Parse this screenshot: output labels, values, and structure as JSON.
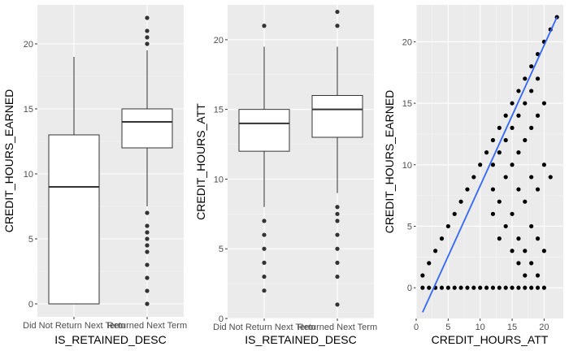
{
  "chart_data": [
    {
      "type": "box",
      "xlabel": "IS_RETAINED_DESC",
      "ylabel": "CREDIT_HOURS_EARNED",
      "categories": [
        "Did Not Return Next Term",
        "Returned Next Term"
      ],
      "ylim": [
        -1,
        23
      ],
      "yticks": [
        0,
        5,
        10,
        15,
        20
      ],
      "grid": true,
      "boxes": [
        {
          "category": "Did Not Return Next Term",
          "min": 0,
          "q1": 0,
          "median": 9,
          "q3": 13,
          "max": 19,
          "outliers": []
        },
        {
          "category": "Returned Next Term",
          "min": 7.5,
          "q1": 12,
          "median": 14,
          "q3": 15,
          "max": 19.5,
          "outliers": [
            0,
            1,
            2,
            3,
            4,
            4.5,
            5,
            5.5,
            6,
            7,
            20,
            20.5,
            21,
            22
          ]
        }
      ]
    },
    {
      "type": "box",
      "xlabel": "IS_RETAINED_DESC",
      "ylabel": "CREDIT_HOURS_ATT",
      "categories": [
        "Did Not Return Next Term",
        "Returned Next Term"
      ],
      "ylim": [
        0,
        22.5
      ],
      "yticks": [
        0,
        5,
        10,
        15,
        20
      ],
      "grid": true,
      "boxes": [
        {
          "category": "Did Not Return Next Term",
          "min": 8,
          "q1": 12,
          "median": 14,
          "q3": 15,
          "max": 19.5,
          "outliers": [
            2,
            3,
            4,
            5,
            6,
            7,
            21
          ]
        },
        {
          "category": "Returned Next Term",
          "min": 9,
          "q1": 13,
          "median": 15,
          "q3": 16,
          "max": 19.5,
          "outliers": [
            1,
            3,
            4,
            5,
            6,
            7,
            7.5,
            8,
            21,
            22
          ]
        }
      ]
    },
    {
      "type": "scatter",
      "xlabel": "CREDIT_HOURS_ATT",
      "ylabel": "CREDIT_HOURS_EARNED",
      "xlim": [
        0,
        23
      ],
      "ylim": [
        -2.5,
        23
      ],
      "xticks": [
        0,
        5,
        10,
        15,
        20
      ],
      "yticks": [
        0,
        5,
        10,
        15,
        20
      ],
      "grid": true,
      "point_color": "#000000",
      "trend_line": {
        "x": [
          1,
          22
        ],
        "y": [
          -2,
          22
        ],
        "color": "#3366ff"
      },
      "points": [
        [
          1,
          0
        ],
        [
          1,
          1
        ],
        [
          2,
          0
        ],
        [
          2,
          2
        ],
        [
          3,
          0
        ],
        [
          3,
          3
        ],
        [
          4,
          0
        ],
        [
          4,
          4
        ],
        [
          5,
          0
        ],
        [
          5,
          5
        ],
        [
          6,
          0
        ],
        [
          6,
          6
        ],
        [
          7,
          0
        ],
        [
          7,
          7
        ],
        [
          8,
          0
        ],
        [
          8,
          8
        ],
        [
          9,
          0
        ],
        [
          9,
          9
        ],
        [
          10,
          0
        ],
        [
          10,
          10
        ],
        [
          11,
          0
        ],
        [
          11,
          11
        ],
        [
          12,
          0
        ],
        [
          12,
          12
        ],
        [
          13,
          0
        ],
        [
          13,
          13
        ],
        [
          14,
          0
        ],
        [
          14,
          14
        ],
        [
          15,
          0
        ],
        [
          15,
          15
        ],
        [
          16,
          0
        ],
        [
          16,
          16
        ],
        [
          17,
          0
        ],
        [
          17,
          17
        ],
        [
          18,
          0
        ],
        [
          18,
          18
        ],
        [
          19,
          0
        ],
        [
          19,
          19
        ],
        [
          20,
          0
        ],
        [
          20,
          20
        ],
        [
          21,
          21
        ],
        [
          22,
          22
        ],
        [
          12,
          6
        ],
        [
          12,
          8
        ],
        [
          12,
          10
        ],
        [
          13,
          4
        ],
        [
          13,
          7
        ],
        [
          13,
          11
        ],
        [
          14,
          5
        ],
        [
          14,
          9
        ],
        [
          14,
          12
        ],
        [
          15,
          3
        ],
        [
          15,
          6
        ],
        [
          15,
          10
        ],
        [
          15,
          13
        ],
        [
          16,
          2
        ],
        [
          16,
          4
        ],
        [
          16,
          8
        ],
        [
          16,
          11
        ],
        [
          16,
          14
        ],
        [
          17,
          1
        ],
        [
          17,
          3
        ],
        [
          17,
          7
        ],
        [
          17,
          12
        ],
        [
          17,
          15
        ],
        [
          18,
          2
        ],
        [
          18,
          5
        ],
        [
          18,
          9
        ],
        [
          18,
          13
        ],
        [
          18,
          16
        ],
        [
          19,
          1
        ],
        [
          19,
          4
        ],
        [
          19,
          8
        ],
        [
          19,
          14
        ],
        [
          19,
          17
        ],
        [
          20,
          3
        ],
        [
          20,
          10
        ],
        [
          20,
          15
        ],
        [
          21,
          9
        ]
      ]
    }
  ]
}
